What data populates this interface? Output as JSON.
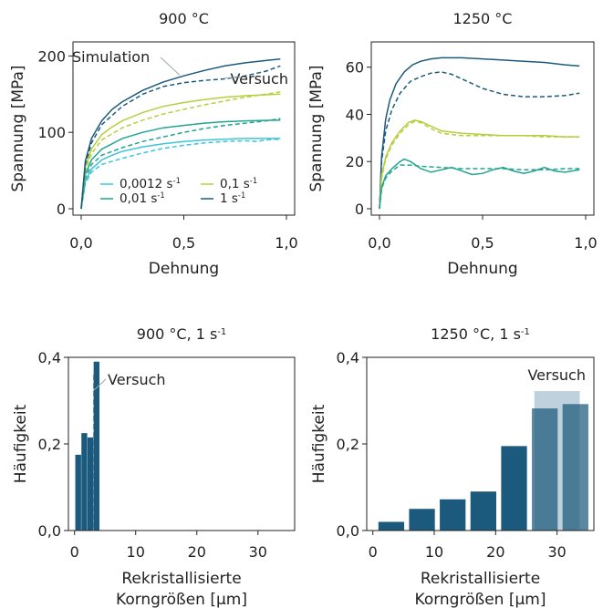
{
  "colors": {
    "c1": "#3fc5d9",
    "c2": "#22a48e",
    "c3": "#b6cf3c",
    "c4": "#1c5a7d",
    "bar": "#1c5a7d",
    "bar_exp": "#bfd1dc"
  },
  "chart_data": [
    {
      "type": "line",
      "title": "900 °C",
      "xlabel": "Dehnung",
      "ylabel": "Spannung [MPa]",
      "xlim": [
        0,
        1.0
      ],
      "ylim": [
        0,
        210
      ],
      "xticks": [
        0,
        0.5,
        1.0
      ],
      "xtick_labels": [
        "0,0",
        "0,5",
        "1,0"
      ],
      "yticks": [
        0,
        100,
        200
      ],
      "ytick_labels": [
        "0",
        "100",
        "200"
      ],
      "legend": [
        {
          "label": "0,0012 s",
          "sup": "-1",
          "color": "c1"
        },
        {
          "label": "0,01 s",
          "sup": "-1",
          "color": "c2"
        },
        {
          "label": "0,1 s",
          "sup": "-1",
          "color": "c3"
        },
        {
          "label": "1 s",
          "sup": "-1",
          "color": "c4"
        }
      ],
      "annotations": [
        {
          "text": "Simulation",
          "target": [
            0.48,
            175
          ]
        },
        {
          "text": "Versuch",
          "target": [
            0.77,
            173
          ]
        }
      ],
      "series": [
        {
          "color": "c1",
          "style": "solid",
          "points": [
            [
              0,
              0
            ],
            [
              0.02,
              36
            ],
            [
              0.05,
              52
            ],
            [
              0.1,
              64
            ],
            [
              0.15,
              70
            ],
            [
              0.2,
              75
            ],
            [
              0.3,
              81
            ],
            [
              0.4,
              85
            ],
            [
              0.5,
              88
            ],
            [
              0.6,
              90
            ],
            [
              0.7,
              91
            ],
            [
              0.8,
              92
            ],
            [
              0.97,
              92
            ]
          ]
        },
        {
          "color": "c1",
          "style": "dashed",
          "points": [
            [
              0,
              0
            ],
            [
              0.02,
              33
            ],
            [
              0.05,
              48
            ],
            [
              0.1,
              58
            ],
            [
              0.2,
              66
            ],
            [
              0.3,
              73
            ],
            [
              0.4,
              79
            ],
            [
              0.5,
              83
            ],
            [
              0.6,
              86
            ],
            [
              0.7,
              88
            ],
            [
              0.8,
              89
            ],
            [
              0.85,
              88
            ],
            [
              0.9,
              90
            ],
            [
              0.95,
              91
            ],
            [
              0.97,
              90
            ]
          ]
        },
        {
          "color": "c2",
          "style": "solid",
          "points": [
            [
              0,
              0
            ],
            [
              0.02,
              45
            ],
            [
              0.05,
              64
            ],
            [
              0.1,
              78
            ],
            [
              0.15,
              85
            ],
            [
              0.2,
              92
            ],
            [
              0.3,
              100
            ],
            [
              0.4,
              106
            ],
            [
              0.5,
              109
            ],
            [
              0.6,
              112
            ],
            [
              0.7,
              114
            ],
            [
              0.8,
              115
            ],
            [
              0.97,
              116
            ]
          ]
        },
        {
          "color": "c2",
          "style": "dashed",
          "points": [
            [
              0,
              0
            ],
            [
              0.02,
              40
            ],
            [
              0.05,
              58
            ],
            [
              0.1,
              70
            ],
            [
              0.2,
              80
            ],
            [
              0.3,
              88
            ],
            [
              0.4,
              94
            ],
            [
              0.5,
              100
            ],
            [
              0.6,
              105
            ],
            [
              0.7,
              109
            ],
            [
              0.8,
              112
            ],
            [
              0.9,
              115
            ],
            [
              0.97,
              118
            ]
          ]
        },
        {
          "color": "c3",
          "style": "solid",
          "points": [
            [
              0,
              0
            ],
            [
              0.02,
              55
            ],
            [
              0.05,
              78
            ],
            [
              0.1,
              97
            ],
            [
              0.15,
              107
            ],
            [
              0.2,
              115
            ],
            [
              0.3,
              126
            ],
            [
              0.4,
              134
            ],
            [
              0.5,
              139
            ],
            [
              0.6,
              143
            ],
            [
              0.7,
              146
            ],
            [
              0.8,
              148
            ],
            [
              0.97,
              150
            ]
          ]
        },
        {
          "color": "c3",
          "style": "dashed",
          "points": [
            [
              0,
              0
            ],
            [
              0.02,
              50
            ],
            [
              0.05,
              72
            ],
            [
              0.1,
              90
            ],
            [
              0.2,
              106
            ],
            [
              0.3,
              116
            ],
            [
              0.4,
              124
            ],
            [
              0.5,
              130
            ],
            [
              0.6,
              136
            ],
            [
              0.7,
              141
            ],
            [
              0.8,
              146
            ],
            [
              0.9,
              150
            ],
            [
              0.97,
              153
            ]
          ]
        },
        {
          "color": "c4",
          "style": "solid",
          "points": [
            [
              0,
              0
            ],
            [
              0.02,
              62
            ],
            [
              0.05,
              92
            ],
            [
              0.1,
              115
            ],
            [
              0.15,
              130
            ],
            [
              0.2,
              140
            ],
            [
              0.3,
              155
            ],
            [
              0.4,
              166
            ],
            [
              0.5,
              174
            ],
            [
              0.6,
              181
            ],
            [
              0.7,
              187
            ],
            [
              0.8,
              191
            ],
            [
              0.9,
              194
            ],
            [
              0.97,
              196
            ]
          ]
        },
        {
          "color": "c4",
          "style": "dashed",
          "points": [
            [
              0,
              0
            ],
            [
              0.02,
              58
            ],
            [
              0.05,
              86
            ],
            [
              0.1,
              110
            ],
            [
              0.2,
              134
            ],
            [
              0.3,
              150
            ],
            [
              0.4,
              160
            ],
            [
              0.5,
              165
            ],
            [
              0.6,
              168
            ],
            [
              0.7,
              170
            ],
            [
              0.8,
              174
            ],
            [
              0.9,
              180
            ],
            [
              0.97,
              187
            ]
          ]
        }
      ]
    },
    {
      "type": "line",
      "title": "1250 °C",
      "xlabel": "Dehnung",
      "ylabel": "Spannung [MPa]",
      "xlim": [
        0,
        1.0
      ],
      "ylim": [
        0,
        68
      ],
      "xticks": [
        0,
        0.5,
        1.0
      ],
      "xtick_labels": [
        "0,0",
        "0,5",
        "1,0"
      ],
      "yticks": [
        0,
        20,
        40,
        60
      ],
      "ytick_labels": [
        "0",
        "20",
        "40",
        "60"
      ],
      "series": [
        {
          "color": "c4",
          "style": "solid",
          "points": [
            [
              0,
              0
            ],
            [
              0.01,
              22
            ],
            [
              0.03,
              38
            ],
            [
              0.05,
              46
            ],
            [
              0.08,
              53
            ],
            [
              0.12,
              58
            ],
            [
              0.16,
              61
            ],
            [
              0.2,
              62.5
            ],
            [
              0.25,
              63.5
            ],
            [
              0.3,
              64
            ],
            [
              0.4,
              64
            ],
            [
              0.5,
              63.5
            ],
            [
              0.6,
              63
            ],
            [
              0.7,
              62.5
            ],
            [
              0.8,
              62
            ],
            [
              0.9,
              61
            ],
            [
              0.97,
              60.5
            ]
          ]
        },
        {
          "color": "c4",
          "style": "dashed",
          "points": [
            [
              0,
              0
            ],
            [
              0.01,
              20
            ],
            [
              0.03,
              33
            ],
            [
              0.06,
              42
            ],
            [
              0.1,
              49
            ],
            [
              0.15,
              54
            ],
            [
              0.2,
              56
            ],
            [
              0.25,
              57.5
            ],
            [
              0.3,
              58
            ],
            [
              0.35,
              57
            ],
            [
              0.4,
              55
            ],
            [
              0.5,
              51
            ],
            [
              0.6,
              48.5
            ],
            [
              0.7,
              47.5
            ],
            [
              0.8,
              47.5
            ],
            [
              0.9,
              48
            ],
            [
              0.97,
              49
            ]
          ]
        },
        {
          "color": "c3",
          "style": "solid",
          "points": [
            [
              0,
              0
            ],
            [
              0.01,
              14
            ],
            [
              0.03,
              22
            ],
            [
              0.06,
              28
            ],
            [
              0.1,
              33
            ],
            [
              0.14,
              36.5
            ],
            [
              0.17,
              37.5
            ],
            [
              0.2,
              37
            ],
            [
              0.25,
              35
            ],
            [
              0.3,
              33
            ],
            [
              0.4,
              32
            ],
            [
              0.5,
              31.5
            ],
            [
              0.6,
              31
            ],
            [
              0.7,
              31
            ],
            [
              0.8,
              31
            ],
            [
              0.9,
              30.5
            ],
            [
              0.97,
              30.5
            ]
          ]
        },
        {
          "color": "c3",
          "style": "dashed",
          "points": [
            [
              0,
              0
            ],
            [
              0.01,
              13
            ],
            [
              0.03,
              21
            ],
            [
              0.06,
              27
            ],
            [
              0.1,
              32
            ],
            [
              0.14,
              35.5
            ],
            [
              0.17,
              37
            ],
            [
              0.2,
              36.5
            ],
            [
              0.25,
              34
            ],
            [
              0.3,
              32
            ],
            [
              0.4,
              31
            ],
            [
              0.5,
              31
            ],
            [
              0.6,
              31
            ],
            [
              0.7,
              31
            ],
            [
              0.8,
              30.5
            ],
            [
              0.9,
              30.5
            ],
            [
              0.97,
              30.5
            ]
          ]
        },
        {
          "color": "c2",
          "style": "solid",
          "points": [
            [
              0,
              0
            ],
            [
              0.01,
              9
            ],
            [
              0.03,
              14
            ],
            [
              0.06,
              17
            ],
            [
              0.1,
              20
            ],
            [
              0.12,
              21
            ],
            [
              0.15,
              20
            ],
            [
              0.2,
              17
            ],
            [
              0.25,
              15.5
            ],
            [
              0.3,
              16.5
            ],
            [
              0.35,
              17.5
            ],
            [
              0.4,
              16
            ],
            [
              0.45,
              14.5
            ],
            [
              0.5,
              15
            ],
            [
              0.55,
              16.5
            ],
            [
              0.6,
              17.5
            ],
            [
              0.65,
              16
            ],
            [
              0.7,
              15
            ],
            [
              0.75,
              16
            ],
            [
              0.8,
              17.5
            ],
            [
              0.85,
              16
            ],
            [
              0.9,
              15.5
            ],
            [
              0.97,
              16.5
            ]
          ]
        },
        {
          "color": "c2",
          "style": "dashed",
          "points": [
            [
              0,
              0
            ],
            [
              0.01,
              8.5
            ],
            [
              0.03,
              13
            ],
            [
              0.06,
              16
            ],
            [
              0.1,
              18.5
            ],
            [
              0.15,
              18.5
            ],
            [
              0.2,
              18
            ],
            [
              0.3,
              17.5
            ],
            [
              0.4,
              17
            ],
            [
              0.5,
              17
            ],
            [
              0.6,
              17
            ],
            [
              0.7,
              16.5
            ],
            [
              0.8,
              16.5
            ],
            [
              0.9,
              17
            ],
            [
              0.97,
              17
            ]
          ]
        }
      ]
    },
    {
      "type": "bar",
      "title": "900 °C, 1 s",
      "title_sup": "-1",
      "xlabel": "Rekristallisierte Korngrößen [µm]",
      "xlabel_lines": [
        "Rekristallisierte",
        "Korngrößen [µm]"
      ],
      "ylabel": "Häufigkeit",
      "xlim": [
        -1,
        36
      ],
      "ylim": [
        0,
        0.4
      ],
      "xticks": [
        0,
        10,
        20,
        30
      ],
      "xtick_labels": [
        "0",
        "10",
        "20",
        "30"
      ],
      "yticks": [
        0,
        0.2,
        0.4
      ],
      "ytick_labels": [
        "0,0",
        "0,2",
        "0,4"
      ],
      "bin_width": 0.95,
      "bars": [
        {
          "x": 0.6,
          "value": 0.175
        },
        {
          "x": 1.6,
          "value": 0.225
        },
        {
          "x": 2.6,
          "value": 0.215
        },
        {
          "x": 3.6,
          "value": 0.39
        }
      ],
      "experiment": {
        "x_from": 3.0,
        "x_to": 3.4,
        "value": 0.36,
        "label": "Versuch"
      }
    },
    {
      "type": "bar",
      "title": "1250 °C, 1 s",
      "title_sup": "-1",
      "xlabel": "Rekristallisierte Korngrößen [µm]",
      "xlabel_lines": [
        "Rekristallisierte",
        "Korngrößen [µm]"
      ],
      "ylabel": "Häufigkeit",
      "xlim": [
        -1,
        36
      ],
      "ylim": [
        0,
        0.4
      ],
      "xticks": [
        0,
        10,
        20,
        30
      ],
      "xtick_labels": [
        "0",
        "10",
        "20",
        "30"
      ],
      "yticks": [
        0,
        0.2,
        0.4
      ],
      "ytick_labels": [
        "0,0",
        "0,2",
        "0,4"
      ],
      "bin_width": 4.2,
      "bars": [
        {
          "x": 3,
          "value": 0.02
        },
        {
          "x": 8,
          "value": 0.05
        },
        {
          "x": 13,
          "value": 0.072
        },
        {
          "x": 18,
          "value": 0.09
        },
        {
          "x": 23,
          "value": 0.195
        },
        {
          "x": 28,
          "value": 0.282
        },
        {
          "x": 33,
          "value": 0.292
        }
      ],
      "experiment": {
        "x_from": 26.3,
        "x_to": 33.7,
        "value": 0.322,
        "label": "Versuch"
      }
    }
  ]
}
